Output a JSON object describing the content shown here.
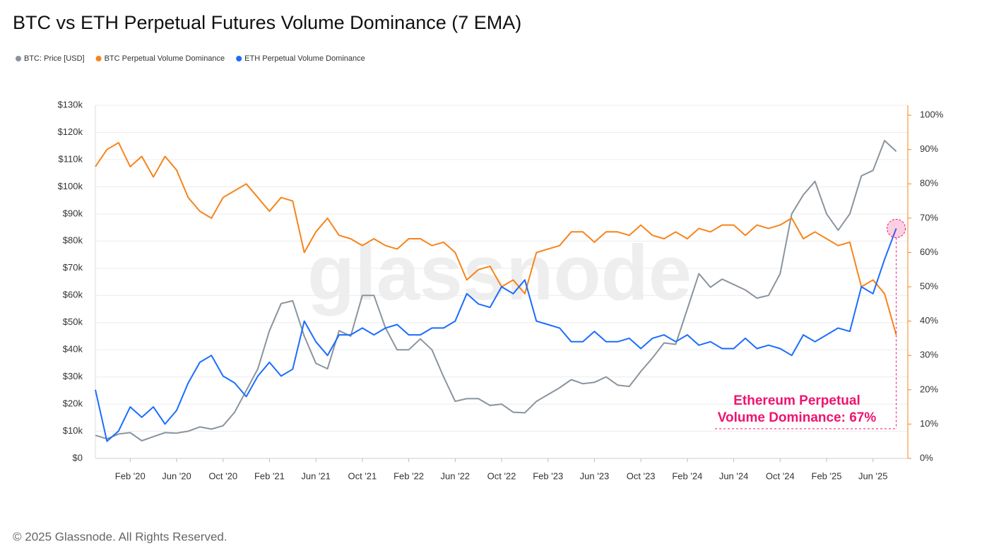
{
  "chart_data": {
    "type": "line",
    "title": "BTC vs ETH Perpetual Futures Volume Dominance (7 EMA)",
    "x": [
      "2019-11",
      "2019-12",
      "2020-01",
      "2020-02",
      "2020-03",
      "2020-04",
      "2020-05",
      "2020-06",
      "2020-07",
      "2020-08",
      "2020-09",
      "2020-10",
      "2020-11",
      "2020-12",
      "2021-01",
      "2021-02",
      "2021-03",
      "2021-04",
      "2021-05",
      "2021-06",
      "2021-07",
      "2021-08",
      "2021-09",
      "2021-10",
      "2021-11",
      "2021-12",
      "2022-01",
      "2022-02",
      "2022-03",
      "2022-04",
      "2022-05",
      "2022-06",
      "2022-07",
      "2022-08",
      "2022-09",
      "2022-10",
      "2022-11",
      "2022-12",
      "2023-01",
      "2023-02",
      "2023-03",
      "2023-04",
      "2023-05",
      "2023-06",
      "2023-07",
      "2023-08",
      "2023-09",
      "2023-10",
      "2023-11",
      "2023-12",
      "2024-01",
      "2024-02",
      "2024-03",
      "2024-04",
      "2024-05",
      "2024-06",
      "2024-07",
      "2024-08",
      "2024-09",
      "2024-10",
      "2024-11",
      "2024-12",
      "2025-01",
      "2025-02",
      "2025-03",
      "2025-04",
      "2025-05",
      "2025-06",
      "2025-07",
      "2025-08"
    ],
    "series": [
      {
        "name": "BTC: Price [USD]",
        "color": "#8a949e",
        "axis": "y",
        "values": [
          8500,
          7200,
          9000,
          9500,
          6500,
          8000,
          9500,
          9300,
          10000,
          11600,
          10800,
          12000,
          17000,
          25000,
          33000,
          47000,
          57000,
          58000,
          45000,
          35000,
          33000,
          47000,
          45000,
          60000,
          60000,
          48000,
          40000,
          40000,
          44000,
          40000,
          30000,
          21000,
          22000,
          22000,
          19500,
          20000,
          17000,
          16800,
          21000,
          23500,
          26000,
          29000,
          27500,
          28000,
          30000,
          27000,
          26500,
          32000,
          37000,
          42500,
          42000,
          55000,
          68000,
          63000,
          66000,
          64000,
          62000,
          59000,
          60000,
          68000,
          90000,
          97000,
          102000,
          90000,
          84000,
          90000,
          104000,
          106000,
          117000,
          113000
        ]
      },
      {
        "name": "BTC Perpetual Volume Dominance",
        "color": "#f7841a",
        "axis": "y2",
        "values": [
          85,
          90,
          92,
          85,
          88,
          82,
          88,
          84,
          76,
          72,
          70,
          76,
          78,
          80,
          76,
          72,
          76,
          75,
          60,
          66,
          70,
          65,
          64,
          62,
          64,
          62,
          61,
          64,
          64,
          62,
          63,
          60,
          52,
          55,
          56,
          50,
          52,
          48,
          60,
          61,
          62,
          66,
          66,
          63,
          66,
          66,
          65,
          68,
          65,
          64,
          66,
          64,
          67,
          66,
          68,
          68,
          65,
          68,
          67,
          68,
          70,
          64,
          66,
          64,
          62,
          63,
          50,
          52,
          48,
          36
        ]
      },
      {
        "name": "ETH Perpetual Volume Dominance",
        "color": "#1a6dff",
        "axis": "y2",
        "values": [
          20,
          5,
          8,
          15,
          12,
          15,
          10,
          14,
          22,
          28,
          30,
          24,
          22,
          18,
          24,
          28,
          24,
          26,
          40,
          34,
          30,
          36,
          36,
          38,
          36,
          38,
          39,
          36,
          36,
          38,
          38,
          40,
          48,
          45,
          44,
          50,
          48,
          52,
          40,
          39,
          38,
          34,
          34,
          37,
          34,
          34,
          35,
          32,
          35,
          36,
          34,
          36,
          33,
          34,
          32,
          32,
          35,
          32,
          33,
          32,
          30,
          36,
          34,
          36,
          38,
          37,
          50,
          48,
          58,
          67
        ]
      }
    ],
    "xlim": [
      "2019-11",
      "2025-09"
    ],
    "xticks": [
      {
        "value": "2020-02",
        "label": "Feb '20"
      },
      {
        "value": "2020-06",
        "label": "Jun '20"
      },
      {
        "value": "2020-10",
        "label": "Oct '20"
      },
      {
        "value": "2021-02",
        "label": "Feb '21"
      },
      {
        "value": "2021-06",
        "label": "Jun '21"
      },
      {
        "value": "2021-10",
        "label": "Oct '21"
      },
      {
        "value": "2022-02",
        "label": "Feb '22"
      },
      {
        "value": "2022-06",
        "label": "Jun '22"
      },
      {
        "value": "2022-10",
        "label": "Oct '22"
      },
      {
        "value": "2023-02",
        "label": "Feb '23"
      },
      {
        "value": "2023-06",
        "label": "Jun '23"
      },
      {
        "value": "2023-10",
        "label": "Oct '23"
      },
      {
        "value": "2024-02",
        "label": "Feb '24"
      },
      {
        "value": "2024-06",
        "label": "Jun '24"
      },
      {
        "value": "2024-10",
        "label": "Oct '24"
      },
      {
        "value": "2025-02",
        "label": "Feb '25"
      },
      {
        "value": "2025-06",
        "label": "Jun '25"
      }
    ],
    "ylim": [
      0,
      130000
    ],
    "yticks": [
      {
        "value": 0,
        "label": "$0"
      },
      {
        "value": 10000,
        "label": "$10k"
      },
      {
        "value": 20000,
        "label": "$20k"
      },
      {
        "value": 30000,
        "label": "$30k"
      },
      {
        "value": 40000,
        "label": "$40k"
      },
      {
        "value": 50000,
        "label": "$50k"
      },
      {
        "value": 60000,
        "label": "$60k"
      },
      {
        "value": 70000,
        "label": "$70k"
      },
      {
        "value": 80000,
        "label": "$80k"
      },
      {
        "value": 90000,
        "label": "$90k"
      },
      {
        "value": 100000,
        "label": "$100k"
      },
      {
        "value": 110000,
        "label": "$110k"
      },
      {
        "value": 120000,
        "label": "$120k"
      },
      {
        "value": 130000,
        "label": "$130k"
      }
    ],
    "y2lim": [
      0,
      102.9
    ],
    "y2ticks": [
      {
        "value": 0,
        "label": "0%"
      },
      {
        "value": 10,
        "label": "10%"
      },
      {
        "value": 20,
        "label": "20%"
      },
      {
        "value": 30,
        "label": "30%"
      },
      {
        "value": 40,
        "label": "40%"
      },
      {
        "value": 50,
        "label": "50%"
      },
      {
        "value": 60,
        "label": "60%"
      },
      {
        "value": 70,
        "label": "70%"
      },
      {
        "value": 80,
        "label": "80%"
      },
      {
        "value": 90,
        "label": "90%"
      },
      {
        "value": 100,
        "label": "100%"
      }
    ],
    "grid": true,
    "annotation": {
      "lines": [
        "Ethereum Perpetual",
        "Volume Dominance: 67%"
      ],
      "color": "#f0136f"
    },
    "watermark": "glassnode",
    "footer": "© 2025 Glassnode. All Rights Reserved."
  }
}
